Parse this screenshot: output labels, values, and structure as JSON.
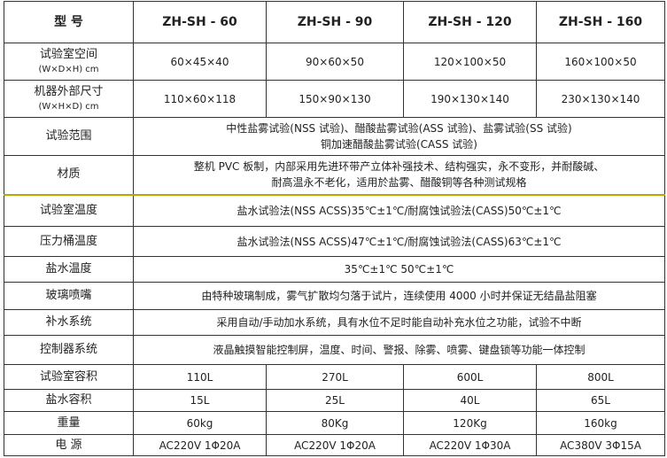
{
  "header": {
    "label": "型 号",
    "models": [
      "ZH-SH - 60",
      "ZH-SH - 90",
      "ZH-SH - 120",
      "ZH-SH - 160"
    ]
  },
  "rows": {
    "chamber_space": {
      "label": "试验室空间",
      "unit": "(W×D×H) cm",
      "values": [
        "60×45×40",
        "90×60×50",
        "120×100×50",
        "160×100×50"
      ]
    },
    "outer_size": {
      "label": "机器外部尺寸",
      "unit": "(W×H×D) cm",
      "values": [
        "110×60×118",
        "150×90×130",
        "190×130×140",
        "230×130×140"
      ]
    },
    "test_range": {
      "label": "试验范围",
      "line1": "中性盐雾试验(NSS 试验)、醋酸盐雾试验(ASS 试验)、盐雾试验(SS 试验)",
      "line2": "铜加速醋酸盐雾试验(CASS 试验)"
    },
    "material": {
      "label": "材质",
      "line1": "整机 PVC 板制，内部采用先进环带产立体补强技术、结构强实，永不变形，并耐酸碱、",
      "line2": "耐高温永不老化，适用於盐雾、醋酸铜等各种测试规格"
    },
    "chamber_temp": {
      "label": "试验室温度",
      "value": "盐水试验法(NSS ACSS)35℃±1℃/耐腐蚀试验法(CASS)50℃±1℃"
    },
    "barrel_temp": {
      "label": "压力桶温度",
      "value": "盐水试验法(NSS ACSS)47℃±1℃/耐腐蚀试验法(CASS)63℃±1℃"
    },
    "brine_temp": {
      "label": "盐水温度",
      "value": "35℃±1℃  50℃±1℃"
    },
    "nozzle": {
      "label": "玻璃喷嘴",
      "value": "由特种玻璃制成，雾气扩散均匀落于试片，连续使用 4000 小时并保证无结晶盐阻塞"
    },
    "water_supply": {
      "label": "补水系统",
      "value": "采用自动/手动加水系统，具有水位不足时能自动补充水位之功能，试验不中断"
    },
    "controller": {
      "label": "控制器系统",
      "value": "液晶触摸智能控制屏，温度、时间、警报、除雾、喷雾、键盘锁等功能一体控制"
    },
    "chamber_volume": {
      "label": "试验室容积",
      "values": [
        "110L",
        "270L",
        "600L",
        "800L"
      ]
    },
    "brine_volume": {
      "label": "盐水容积",
      "values": [
        "15L",
        "25L",
        "40L",
        "65L"
      ]
    },
    "weight": {
      "label": "重量",
      "values": [
        "60kg",
        "80Kg",
        "120Kg",
        "160kg"
      ]
    },
    "power": {
      "label": "电 源",
      "values": [
        "AC220V 1Φ20A",
        "AC220V 1Φ20A",
        "AC220V 1Φ30A",
        "AC380V 3Φ15A"
      ]
    }
  }
}
